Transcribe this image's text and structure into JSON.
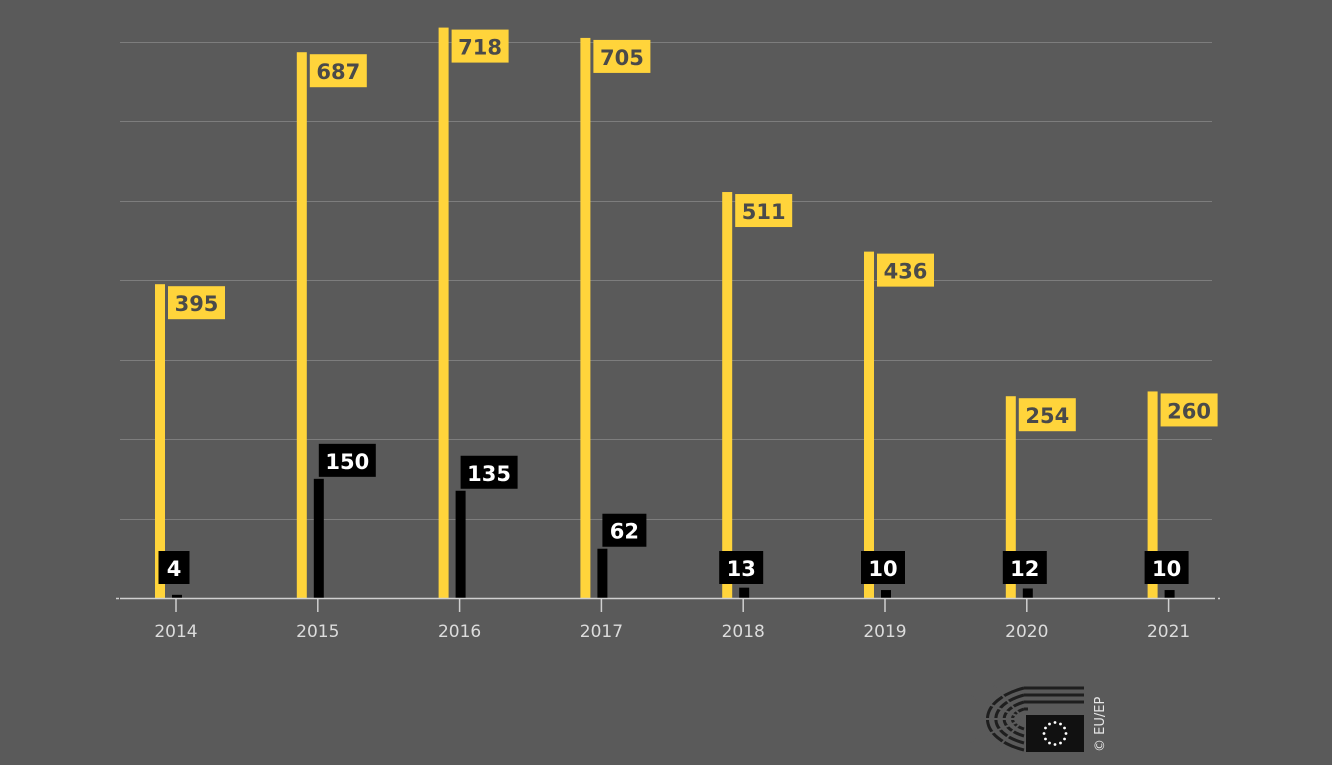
{
  "colors": {
    "background": "#5a5a5a",
    "series_1": "#ffd43b",
    "series_2": "#000000",
    "grid": "#7d7d7d",
    "axis": "#d0d0d0",
    "tick_text": "#dcdcdc",
    "label_text_series_1": "#4a4a4a",
    "label_text_series_2": "#ffffff"
  },
  "chart_data": {
    "type": "bar",
    "categories": [
      "2014",
      "2015",
      "2016",
      "2017",
      "2018",
      "2019",
      "2020",
      "2021"
    ],
    "series": [
      {
        "values": [
          395,
          687,
          718,
          705,
          511,
          436,
          254,
          260
        ]
      },
      {
        "values": [
          4,
          150,
          135,
          62,
          13,
          10,
          12,
          10
        ]
      }
    ],
    "ylim": [
      0,
      720
    ],
    "grid": true,
    "legend": "none"
  },
  "footer": {
    "credit": "© EU/EP",
    "logo_icon": "european-parliament-logo-icon"
  }
}
